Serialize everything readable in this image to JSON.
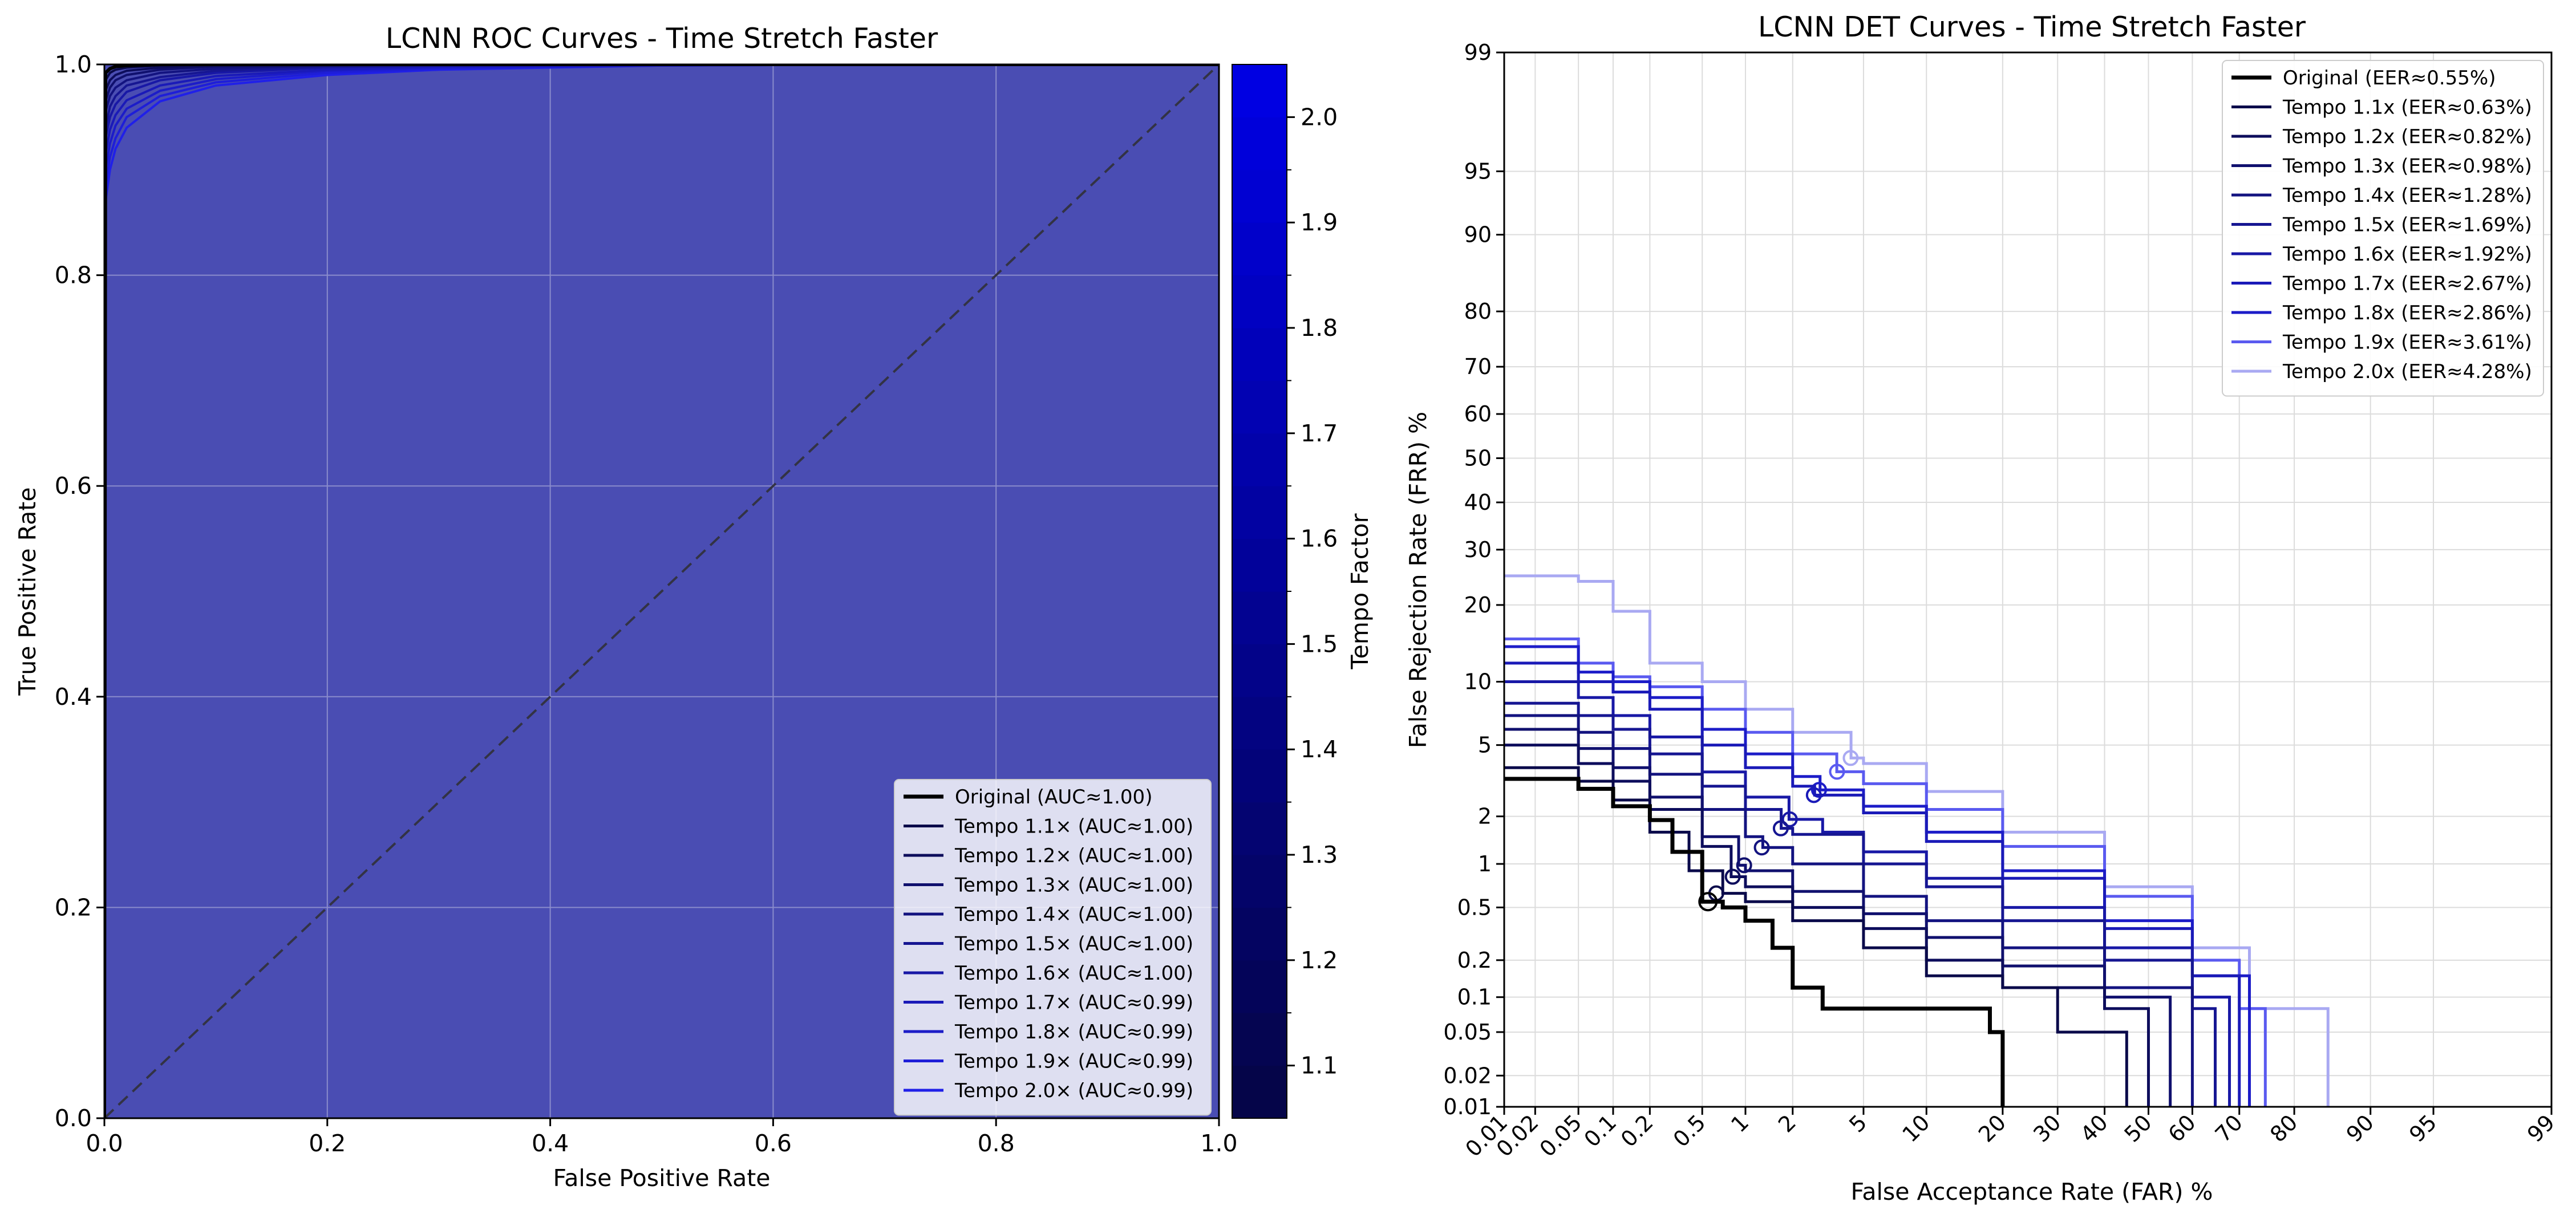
{
  "chart_data": [
    {
      "type": "line",
      "title": "LCNN ROC Curves - Time Stretch Faster",
      "xlabel": "False Positive Rate",
      "ylabel": "True Positive Rate",
      "xlim": [
        0,
        1
      ],
      "ylim": [
        0,
        1
      ],
      "grid": true,
      "legend": "lower-right",
      "xticks": [
        "0.0",
        "0.2",
        "0.4",
        "0.6",
        "0.8",
        "1.0"
      ],
      "yticks": [
        "0.0",
        "0.2",
        "0.4",
        "0.6",
        "0.8",
        "1.0"
      ],
      "x": [
        0,
        0.001,
        0.005,
        0.01,
        0.02,
        0.05,
        0.1,
        0.2,
        0.3,
        0.5,
        0.7,
        1.0
      ],
      "series": [
        {
          "name": "Original (AUC≈1.00)",
          "color": "#000000",
          "values": [
            0,
            0.992,
            0.996,
            0.998,
            0.999,
            1,
            1,
            1,
            1,
            1,
            1,
            1
          ]
        },
        {
          "name": "Tempo 1.1× (AUC≈1.00)",
          "color": "#0a0a4a",
          "values": [
            0,
            0.985,
            0.992,
            0.995,
            0.997,
            0.999,
            1,
            1,
            1,
            1,
            1,
            1
          ]
        },
        {
          "name": "Tempo 1.2× (AUC≈1.00)",
          "color": "#0d0d5c",
          "values": [
            0,
            0.975,
            0.985,
            0.99,
            0.994,
            0.997,
            0.999,
            1,
            1,
            1,
            1,
            1
          ]
        },
        {
          "name": "Tempo 1.3× (AUC≈1.00)",
          "color": "#10106e",
          "values": [
            0,
            0.965,
            0.978,
            0.985,
            0.99,
            0.995,
            0.998,
            0.999,
            1,
            1,
            1,
            1
          ]
        },
        {
          "name": "Tempo 1.4× (AUC≈1.00)",
          "color": "#131380",
          "values": [
            0,
            0.955,
            0.97,
            0.978,
            0.985,
            0.992,
            0.996,
            0.999,
            1,
            1,
            1,
            1
          ]
        },
        {
          "name": "Tempo 1.5× (AUC≈1.00)",
          "color": "#161692",
          "values": [
            0,
            0.94,
            0.96,
            0.97,
            0.98,
            0.988,
            0.994,
            0.998,
            0.999,
            1,
            1,
            1
          ]
        },
        {
          "name": "Tempo 1.6× (AUC≈1.00)",
          "color": "#1818a6",
          "values": [
            0,
            0.93,
            0.95,
            0.962,
            0.974,
            0.985,
            0.992,
            0.997,
            0.999,
            1,
            1,
            1
          ]
        },
        {
          "name": "Tempo 1.7× (AUC≈0.99)",
          "color": "#1a1ab8",
          "values": [
            0,
            0.915,
            0.938,
            0.952,
            0.966,
            0.98,
            0.989,
            0.995,
            0.998,
            1,
            1,
            1
          ]
        },
        {
          "name": "Tempo 1.8× (AUC≈0.99)",
          "color": "#1c1cc8",
          "values": [
            0,
            0.9,
            0.925,
            0.942,
            0.958,
            0.975,
            0.986,
            0.994,
            0.997,
            0.999,
            1,
            1
          ]
        },
        {
          "name": "Tempo 1.9× (AUC≈0.99)",
          "color": "#1e1ed8",
          "values": [
            0,
            0.885,
            0.912,
            0.93,
            0.95,
            0.97,
            0.983,
            0.992,
            0.996,
            0.999,
            1,
            1
          ]
        },
        {
          "name": "Tempo 2.0× (AUC≈0.99)",
          "color": "#2020e8",
          "values": [
            0,
            0.87,
            0.9,
            0.92,
            0.94,
            0.965,
            0.98,
            0.99,
            0.995,
            0.999,
            1,
            1
          ]
        }
      ],
      "colorbar": {
        "label": "Tempo Factor",
        "range": [
          1.05,
          2.05
        ],
        "ticks": [
          "1.1",
          "1.2",
          "1.3",
          "1.4",
          "1.5",
          "1.6",
          "1.7",
          "1.8",
          "1.9",
          "2.0"
        ],
        "tick_values": [
          1.1,
          1.2,
          1.3,
          1.4,
          1.5,
          1.6,
          1.7,
          1.8,
          1.9,
          2.0
        ],
        "color_low": "#050545",
        "color_high": "#0000e6"
      },
      "fill_color": "#4a4db3"
    },
    {
      "type": "line",
      "title": "LCNN DET Curves - Time Stretch Faster",
      "xlabel": "False Acceptance Rate (FAR) %",
      "ylabel": "False Rejection Rate (FRR) %",
      "scale": "normal-deviate",
      "xlim": [
        0.01,
        99
      ],
      "ylim": [
        0.01,
        99
      ],
      "grid": true,
      "legend": "top-right",
      "xticks": [
        "0.01",
        "0.02",
        "0.05",
        "0.1",
        "0.2",
        "0.5",
        "1",
        "2",
        "5",
        "10",
        "20",
        "30",
        "40",
        "50",
        "60",
        "70",
        "80",
        "90",
        "95",
        "99"
      ],
      "xtick_values": [
        0.01,
        0.02,
        0.05,
        0.1,
        0.2,
        0.5,
        1,
        2,
        5,
        10,
        20,
        30,
        40,
        50,
        60,
        70,
        80,
        90,
        95,
        99
      ],
      "yticks": [
        "0.01",
        "0.02",
        "0.05",
        "0.1",
        "0.2",
        "0.5",
        "1",
        "2",
        "5",
        "10",
        "20",
        "30",
        "40",
        "50",
        "60",
        "70",
        "80",
        "90",
        "95",
        "99"
      ],
      "ytick_values": [
        0.01,
        0.02,
        0.05,
        0.1,
        0.2,
        0.5,
        1,
        2,
        5,
        10,
        20,
        30,
        40,
        50,
        60,
        70,
        80,
        90,
        95,
        99
      ],
      "series": [
        {
          "name": "Original (EER≈0.55%)",
          "color": "#000000",
          "eer": 0.55,
          "far": [
            0.01,
            0.05,
            0.1,
            0.2,
            0.3,
            0.5,
            0.7,
            1,
            1.5,
            2,
            3,
            5,
            10,
            18,
            20,
            20
          ],
          "frr": [
            3.3,
            2.9,
            2.3,
            1.9,
            1.2,
            0.55,
            0.5,
            0.4,
            0.25,
            0.12,
            0.08,
            0.08,
            0.08,
            0.05,
            0.02,
            0.01
          ]
        },
        {
          "name": "Tempo 1.1x (EER≈0.63%)",
          "color": "#0a0a4a",
          "eer": 0.63,
          "far": [
            0.01,
            0.05,
            0.1,
            0.2,
            0.4,
            0.7,
            1,
            2,
            5,
            10,
            20,
            30,
            45,
            45
          ],
          "frr": [
            3.8,
            3.2,
            2.5,
            1.6,
            0.9,
            0.63,
            0.55,
            0.4,
            0.25,
            0.15,
            0.12,
            0.05,
            0.03,
            0.01
          ]
        },
        {
          "name": "Tempo 1.2x (EER≈0.82%)",
          "color": "#0d0d5c",
          "eer": 0.82,
          "far": [
            0.01,
            0.05,
            0.1,
            0.2,
            0.5,
            0.8,
            1,
            2,
            5,
            10,
            20,
            40,
            50,
            50
          ],
          "frr": [
            5,
            4,
            3.2,
            2.2,
            1.3,
            0.82,
            0.7,
            0.5,
            0.35,
            0.2,
            0.12,
            0.08,
            0.04,
            0.01
          ]
        },
        {
          "name": "Tempo 1.3x (EER≈0.98%)",
          "color": "#10106e",
          "eer": 0.98,
          "far": [
            0.01,
            0.05,
            0.1,
            0.2,
            0.5,
            0.9,
            1,
            2,
            5,
            10,
            20,
            40,
            55,
            55
          ],
          "frr": [
            6,
            4.8,
            3.8,
            2.6,
            1.5,
            0.98,
            0.9,
            0.65,
            0.45,
            0.3,
            0.18,
            0.1,
            0.05,
            0.01
          ]
        },
        {
          "name": "Tempo 1.4x (EER≈1.28%)",
          "color": "#131380",
          "eer": 1.28,
          "far": [
            0.01,
            0.05,
            0.1,
            0.2,
            0.5,
            1,
            1.3,
            2,
            5,
            10,
            20,
            40,
            60,
            60
          ],
          "frr": [
            7,
            5.8,
            4.8,
            3.5,
            2.2,
            1.5,
            1.28,
            1,
            0.6,
            0.4,
            0.25,
            0.12,
            0.06,
            0.01
          ]
        },
        {
          "name": "Tempo 1.5x (EER≈1.69%)",
          "color": "#161692",
          "eer": 1.69,
          "far": [
            0.01,
            0.05,
            0.1,
            0.2,
            0.5,
            1,
            1.7,
            2,
            5,
            10,
            20,
            40,
            60,
            65,
            65
          ],
          "frr": [
            8,
            7,
            6,
            4.5,
            3,
            2.2,
            1.69,
            1.55,
            1,
            0.7,
            0.4,
            0.2,
            0.08,
            0.04,
            0.01
          ]
        },
        {
          "name": "Tempo 1.6x (EER≈1.92%)",
          "color": "#1818a6",
          "eer": 1.92,
          "far": [
            0.01,
            0.05,
            0.1,
            0.2,
            0.5,
            1,
            1.9,
            3,
            5,
            10,
            20,
            40,
            60,
            68,
            68
          ],
          "frr": [
            10,
            8.5,
            7,
            5.5,
            3.6,
            2.6,
            1.92,
            1.6,
            1.2,
            0.8,
            0.5,
            0.25,
            0.1,
            0.05,
            0.01
          ]
        },
        {
          "name": "Tempo 1.7x (EER≈2.67%)",
          "color": "#1a1ab8",
          "eer": 2.67,
          "far": [
            0.01,
            0.05,
            0.1,
            0.2,
            0.5,
            1,
            2,
            2.7,
            5,
            10,
            20,
            40,
            60,
            70,
            70
          ],
          "frr": [
            12,
            10,
            9,
            7.5,
            5,
            3.8,
            3,
            2.67,
            2.1,
            1.4,
            0.8,
            0.35,
            0.15,
            0.06,
            0.01
          ]
        },
        {
          "name": "Tempo 1.8x (EER≈2.86%)",
          "color": "#1c1cc8",
          "eer": 2.86,
          "far": [
            0.01,
            0.05,
            0.1,
            0.2,
            0.5,
            1,
            2,
            2.9,
            5,
            10,
            20,
            40,
            60,
            72,
            72
          ],
          "frr": [
            14,
            11,
            10,
            8.5,
            6,
            4.5,
            3.4,
            2.86,
            2.3,
            1.6,
            0.9,
            0.4,
            0.15,
            0.07,
            0.01
          ]
        },
        {
          "name": "Tempo 1.9x (EER≈3.61%)",
          "color": "#5a5af0",
          "eer": 3.61,
          "far": [
            0.01,
            0.05,
            0.1,
            0.2,
            0.5,
            1,
            2,
            3.6,
            5,
            10,
            20,
            40,
            60,
            70,
            75,
            75
          ],
          "frr": [
            15,
            12,
            10.5,
            9.5,
            7.5,
            5.8,
            4.5,
            3.61,
            3.1,
            2.2,
            1.3,
            0.6,
            0.2,
            0.08,
            0.04,
            0.01
          ]
        },
        {
          "name": "Tempo 2.0x (EER≈4.28%)",
          "color": "#a9a9f2",
          "eer": 4.28,
          "far": [
            0.01,
            0.05,
            0.1,
            0.2,
            0.5,
            1,
            2,
            4.3,
            5,
            10,
            20,
            40,
            60,
            72,
            85,
            85
          ],
          "frr": [
            25,
            24,
            19,
            12,
            10,
            7.5,
            5.8,
            4.28,
            4,
            2.8,
            1.6,
            0.7,
            0.25,
            0.08,
            0.04,
            0.01
          ]
        }
      ]
    }
  ]
}
